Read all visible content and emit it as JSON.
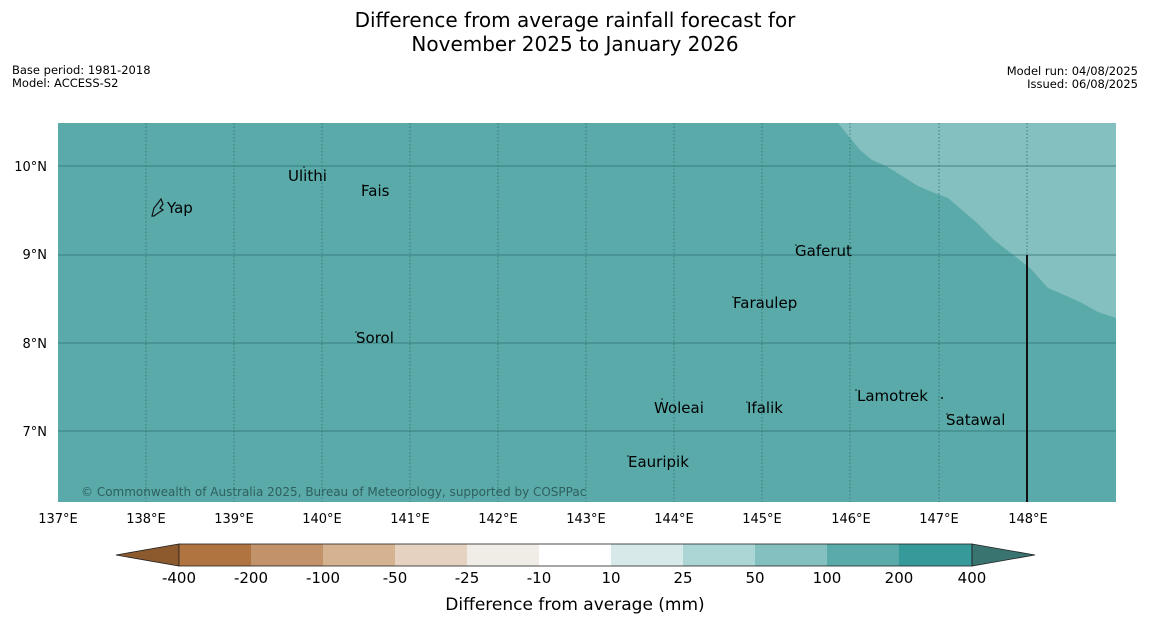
{
  "title_line1": "Difference from average rainfall forecast for",
  "title_line2": "November 2025 to January 2026",
  "base_period": "Base period: 1981-2018",
  "model": "Model: ACCESS-S2",
  "model_run": "Model run: 04/08/2025",
  "issued": "Issued: 06/08/2025",
  "copyright": "© Commonwealth of Australia 2025, Bureau of Meteorology, supported by COSPPac",
  "lon_ticks": [
    "137°E",
    "138°E",
    "139°E",
    "140°E",
    "141°E",
    "142°E",
    "143°E",
    "144°E",
    "145°E",
    "146°E",
    "147°E",
    "148°E"
  ],
  "lat_ticks": [
    "10°N",
    "9°N",
    "8°N",
    "7°N"
  ],
  "places": {
    "yap": "Yap",
    "ulithi": "Ulithi",
    "fais": "Fais",
    "gaferut": "Gaferut",
    "faraulep": "Faraulep",
    "sorol": "Sorol",
    "woleai": "Woleai",
    "ifalik": "Ifalik",
    "lamotrek": "Lamotrek",
    "satawal": "Satawal",
    "eauripik": "Eauripik"
  },
  "colorbar": {
    "title": "Difference from average (mm)",
    "labels": [
      "-400",
      "-200",
      "-100",
      "-50",
      "-25",
      "-10",
      "10",
      "25",
      "50",
      "100",
      "200",
      "400"
    ],
    "colors": {
      "lt400": "#8c5a2c",
      "b1": "#b07440",
      "b2": "#c2926a",
      "b3": "#d5b391",
      "b4": "#e5d2c0",
      "b5": "#f0ece6",
      "b6": "#ffffff",
      "b7": "#d7e9e9",
      "b8": "#acd6d6",
      "b9": "#84c0bf",
      "b10": "#5aaaaa",
      "b11": "#36999a",
      "gt400": "#3a7470"
    }
  },
  "map_colors": {
    "main": "#5aaaaa",
    "light": "#84c0bf"
  }
}
